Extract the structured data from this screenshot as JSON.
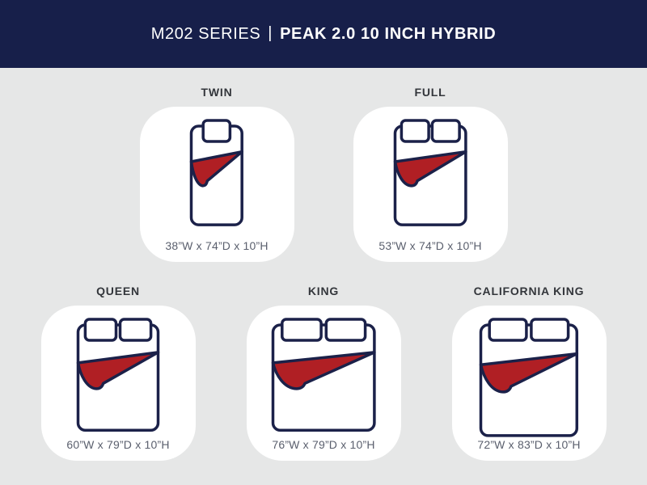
{
  "header": {
    "series": "M202 SERIES",
    "separator": "|",
    "model": "PEAK 2.0 10 INCH HYBRID"
  },
  "colors": {
    "header_bg": "#171f4a",
    "page_bg": "#e6e7e7",
    "card_bg": "#ffffff",
    "outline_navy": "#1b2149",
    "blanket_red": "#b01f24",
    "label_text": "#33363b",
    "dims_text": "#5a5f6d"
  },
  "sizes": [
    {
      "name": "TWIN",
      "dims": "38”W x 74”D x 10”H",
      "width_in": 38,
      "depth_in": 74,
      "height_in": 10,
      "pillows": 1
    },
    {
      "name": "FULL",
      "dims": "53”W x 74”D x 10”H",
      "width_in": 53,
      "depth_in": 74,
      "height_in": 10,
      "pillows": 2
    },
    {
      "name": "QUEEN",
      "dims": "60”W x 79”D x 10”H",
      "width_in": 60,
      "depth_in": 79,
      "height_in": 10,
      "pillows": 2
    },
    {
      "name": "KING",
      "dims": "76”W x 79”D x 10”H",
      "width_in": 76,
      "depth_in": 79,
      "height_in": 10,
      "pillows": 2
    },
    {
      "name": "CALIFORNIA KING",
      "dims": "72”W x 83”D x 10”H",
      "width_in": 72,
      "depth_in": 83,
      "height_in": 10,
      "pillows": 2
    }
  ]
}
